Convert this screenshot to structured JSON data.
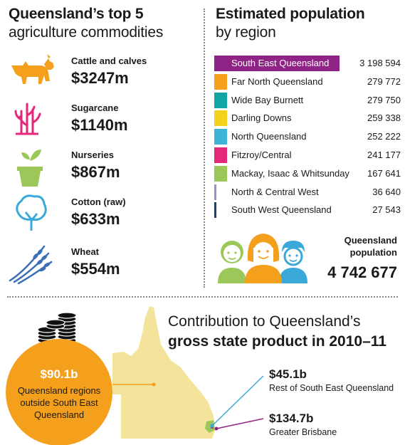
{
  "commodities": {
    "title_bold": "Queensland’s top 5",
    "title_regular": "agriculture commodities",
    "items": [
      {
        "name": "Cattle and calves",
        "value": "$3247m",
        "icon": "cattle-icon",
        "color": "#f4a01c"
      },
      {
        "name": "Sugarcane",
        "value": "$1140m",
        "icon": "sugarcane-icon",
        "color": "#e6287a"
      },
      {
        "name": "Nurseries",
        "value": "$867m",
        "icon": "plant-pot-icon",
        "color": "#9bc859"
      },
      {
        "name": "Cotton (raw)",
        "value": "$633m",
        "icon": "cotton-tree-icon",
        "color": "#3aa8d8"
      },
      {
        "name": "Wheat",
        "value": "$554m",
        "icon": "wheat-icon",
        "color": "#3a6fb5"
      }
    ]
  },
  "population": {
    "title_bold": "Estimated population",
    "title_regular": "by region",
    "total_label": "Queensland population",
    "total_value": "4 742 677"
  },
  "chart_data": {
    "type": "bar",
    "orientation": "horizontal",
    "categories": [
      "South East Queensland",
      "Far North Queensland",
      "Wide Bay Burnett",
      "Darling Downs",
      "North Queensland",
      "Fitzroy/Central",
      "Mackay, Isaac & Whitsunday",
      "North & Central West",
      "South West Queensland"
    ],
    "values": [
      3198594,
      279772,
      279750,
      259338,
      252222,
      241177,
      167641,
      36640,
      27543
    ],
    "value_labels": [
      "3 198 594",
      "279 772",
      "279 750",
      "259 338",
      "252 222",
      "241 177",
      "167 641",
      "36 640",
      "27 543"
    ],
    "colors": [
      "#8f2386",
      "#f4a01c",
      "#13a5a5",
      "#f2d21c",
      "#3eb3d8",
      "#e6287a",
      "#9bc859",
      "#9b8fc6",
      "#1c3f6e"
    ],
    "max_value": 3198594
  },
  "gsp": {
    "title_regular": "Contribution to Queensland’s",
    "title_bold": "gross state product in 2010–11",
    "outside_value": "$90.1b",
    "outside_label": "Queensland regions outside South East Queensland",
    "rest_value": "$45.1b",
    "rest_label": "Rest of South East Queensland",
    "brisbane_value": "$134.7b",
    "brisbane_label": "Greater Brisbane",
    "colors": {
      "outside": "#f4a01c",
      "rest": "#3aa8d8",
      "brisbane": "#8f2386",
      "map": "#f4e39a",
      "map_se": "#9bc859"
    }
  }
}
